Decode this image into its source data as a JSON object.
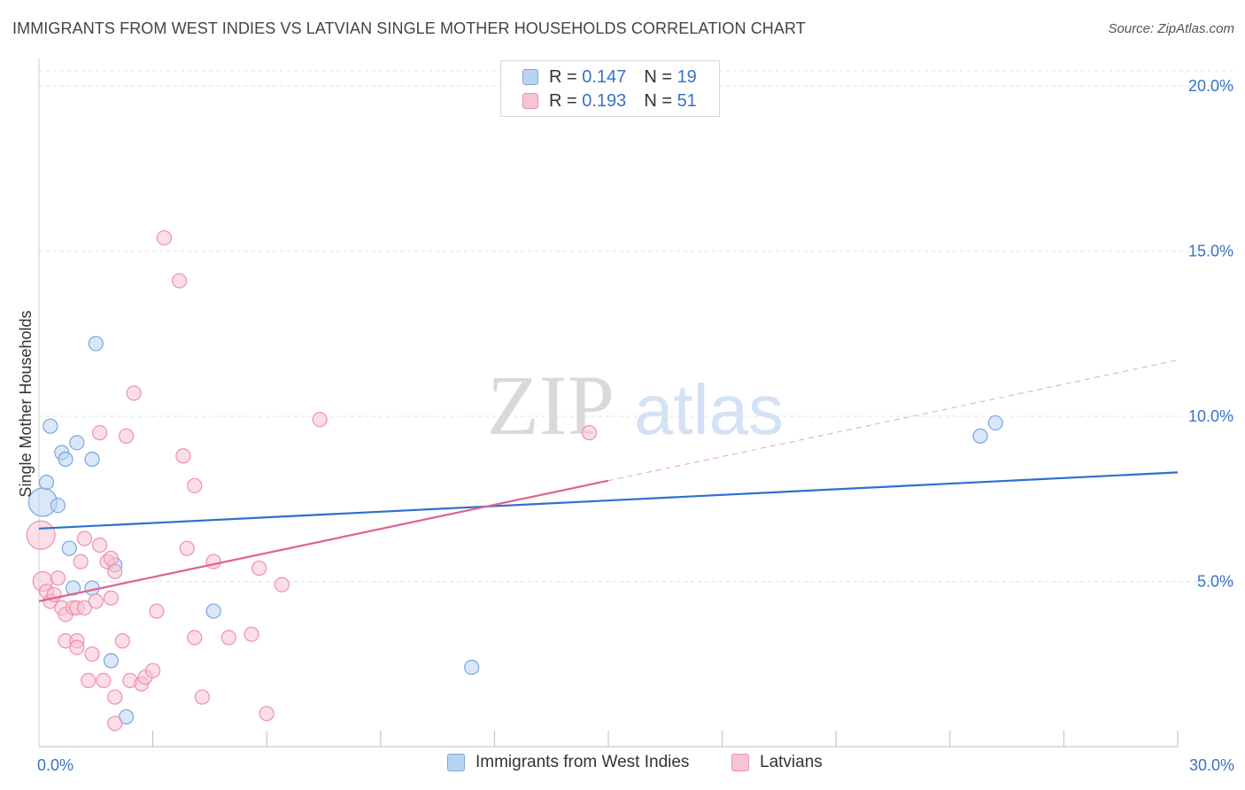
{
  "title": "IMMIGRANTS FROM WEST INDIES VS LATVIAN SINGLE MOTHER HOUSEHOLDS CORRELATION CHART",
  "source": "Source: ZipAtlas.com",
  "watermark": {
    "zip": "ZIP",
    "atlas": "atlas"
  },
  "colors": {
    "blue_fill": "#b9d3f3",
    "blue_stroke": "#7aa6dd",
    "blue_line": "#2f6fce",
    "pink_fill": "#f8c3d3",
    "pink_stroke": "#ee90ae",
    "pink_line": "#e0628e",
    "grid": "#e2e2e2",
    "axis_text": "#3a72c4"
  },
  "legend": {
    "rows": [
      {
        "r_label": "R = ",
        "r_value": "0.147",
        "n_label": "N = ",
        "n_value": "19"
      },
      {
        "r_label": "R = ",
        "r_value": "0.193",
        "n_label": "N = ",
        "n_value": "51"
      }
    ]
  },
  "chart_data": {
    "type": "scatter",
    "title": "IMMIGRANTS FROM WEST INDIES VS LATVIAN SINGLE MOTHER HOUSEHOLDS CORRELATION CHART",
    "xlabel": "",
    "ylabel": "Single Mother Households",
    "xlim": [
      0,
      30
    ],
    "ylim": [
      0,
      20.5
    ],
    "x_tick_labels": [
      {
        "value": 0,
        "label": "0.0%"
      },
      {
        "value": 30,
        "label": "30.0%"
      }
    ],
    "y_tick_labels": [
      {
        "value": 5,
        "label": "5.0%"
      },
      {
        "value": 10,
        "label": "10.0%"
      },
      {
        "value": 15,
        "label": "15.0%"
      },
      {
        "value": 20,
        "label": "20.0%"
      }
    ],
    "x_minor_ticks": [
      3,
      6,
      9,
      12,
      15,
      18,
      21,
      24,
      27,
      30
    ],
    "grid": true,
    "series": [
      {
        "name": "Immigrants from West Indies",
        "color": "blue",
        "points": [
          [
            0.1,
            7.4
          ],
          [
            0.2,
            8.0
          ],
          [
            0.3,
            9.7
          ],
          [
            0.5,
            7.3
          ],
          [
            0.6,
            8.9
          ],
          [
            0.7,
            8.7
          ],
          [
            0.8,
            6.0
          ],
          [
            0.9,
            4.8
          ],
          [
            1.0,
            9.2
          ],
          [
            1.4,
            8.7
          ],
          [
            1.4,
            4.8
          ],
          [
            1.5,
            12.2
          ],
          [
            1.9,
            2.6
          ],
          [
            2.0,
            5.5
          ],
          [
            2.3,
            0.9
          ],
          [
            4.6,
            4.1
          ],
          [
            11.4,
            2.4
          ],
          [
            24.8,
            9.4
          ],
          [
            25.2,
            9.8
          ]
        ],
        "trend": {
          "x": [
            0,
            30
          ],
          "y": [
            6.6,
            8.3
          ],
          "dashed_extension": false
        }
      },
      {
        "name": "Latvians",
        "color": "pink",
        "points": [
          [
            0.05,
            6.4
          ],
          [
            0.1,
            5.0
          ],
          [
            0.2,
            4.7
          ],
          [
            0.3,
            4.4
          ],
          [
            0.4,
            4.6
          ],
          [
            0.5,
            5.1
          ],
          [
            0.6,
            4.2
          ],
          [
            0.7,
            4.0
          ],
          [
            0.7,
            3.2
          ],
          [
            0.9,
            4.2
          ],
          [
            1.0,
            4.2
          ],
          [
            1.0,
            3.2
          ],
          [
            1.0,
            3.0
          ],
          [
            1.1,
            5.6
          ],
          [
            1.2,
            4.2
          ],
          [
            1.2,
            6.3
          ],
          [
            1.3,
            2.0
          ],
          [
            1.4,
            2.8
          ],
          [
            1.5,
            4.4
          ],
          [
            1.6,
            6.1
          ],
          [
            1.6,
            9.5
          ],
          [
            1.7,
            2.0
          ],
          [
            1.8,
            5.6
          ],
          [
            1.9,
            5.7
          ],
          [
            1.9,
            4.5
          ],
          [
            2.0,
            1.5
          ],
          [
            2.0,
            5.3
          ],
          [
            2.0,
            0.7
          ],
          [
            2.2,
            3.2
          ],
          [
            2.3,
            9.4
          ],
          [
            2.4,
            2.0
          ],
          [
            2.5,
            10.7
          ],
          [
            2.7,
            1.9
          ],
          [
            2.8,
            2.1
          ],
          [
            3.0,
            2.3
          ],
          [
            3.1,
            4.1
          ],
          [
            3.3,
            15.4
          ],
          [
            3.7,
            14.1
          ],
          [
            3.8,
            8.8
          ],
          [
            3.9,
            6.0
          ],
          [
            4.1,
            7.9
          ],
          [
            4.1,
            3.3
          ],
          [
            4.3,
            1.5
          ],
          [
            4.6,
            5.6
          ],
          [
            5.0,
            3.3
          ],
          [
            5.6,
            3.4
          ],
          [
            5.8,
            5.4
          ],
          [
            6.0,
            1.0
          ],
          [
            6.4,
            4.9
          ],
          [
            7.4,
            9.9
          ],
          [
            14.5,
            9.5
          ]
        ],
        "trend": {
          "x": [
            0,
            15
          ],
          "y": [
            4.4,
            8.05
          ],
          "dashed_extension": true,
          "dash_x": [
            15,
            30
          ],
          "dash_y": [
            8.05,
            11.7
          ]
        }
      }
    ]
  },
  "bottom_legend": [
    {
      "label": "Immigrants from West Indies"
    },
    {
      "label": "Latvians"
    }
  ]
}
